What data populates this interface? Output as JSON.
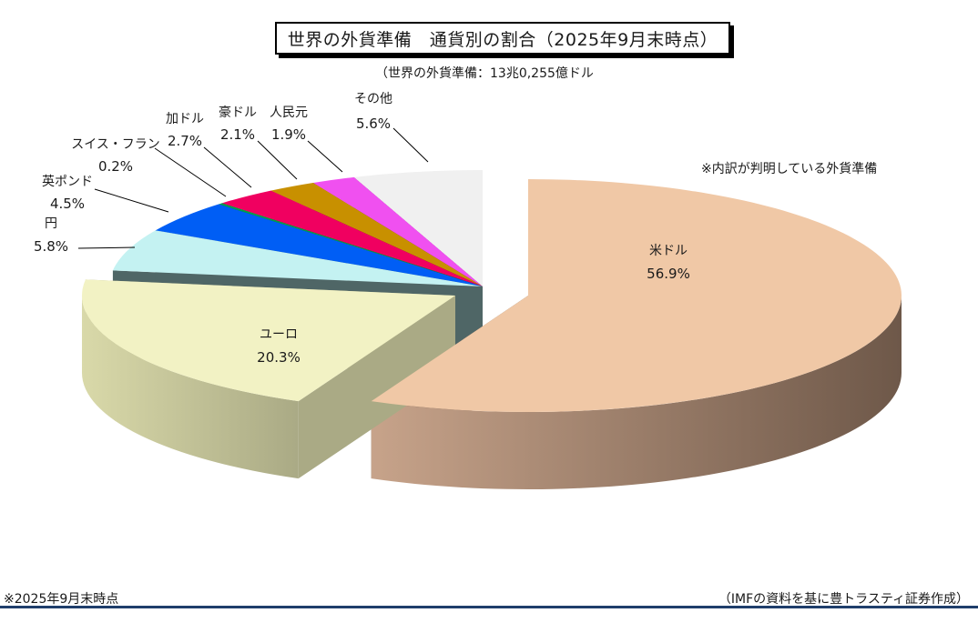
{
  "title": "世界の外貨準備　通貨別の割合（2025年9月末時点）",
  "subtitle": "（世界の外貨準備：13兆0,255億ドル",
  "note": "※内訳が判明している外貨準備",
  "footer_left": "※2025年9月末時点",
  "footer_right": "（IMFの資料を基に豊トラスティ証券作成）",
  "chart_data": {
    "type": "pie",
    "title": "世界の外貨準備　通貨別の割合（2025年9月末時点）",
    "unit": "%",
    "slices": [
      {
        "name": "米ドル",
        "value": 56.9,
        "label": "56.9%",
        "color": "#f0c8a6",
        "side_dark": "#6e5849",
        "side_light": "#c7a38a"
      },
      {
        "name": "ユーロ",
        "value": 20.3,
        "label": "20.3%",
        "color": "#f2f2c4",
        "side_dark": "#aaaa85",
        "side_light": "#d9d9a9"
      },
      {
        "name": "円",
        "value": 5.8,
        "label": "5.8%",
        "color": "#c4f2f2",
        "side_dark": "#4f6666",
        "side_light": "#5b7474"
      },
      {
        "name": "英ポンド",
        "value": 4.5,
        "label": "4.5%",
        "color": "#005ef5",
        "side_dark": "#00205a",
        "side_light": "#003080"
      },
      {
        "name": "スイス・フラン",
        "value": 0.2,
        "label": "0.2%",
        "color": "#00a04a",
        "side_dark": "#004a22",
        "side_light": "#006030"
      },
      {
        "name": "加ドル",
        "value": 2.7,
        "label": "2.7%",
        "color": "#f00060",
        "side_dark": "#5a0024",
        "side_light": "#780030"
      },
      {
        "name": "豪ドル",
        "value": 2.1,
        "label": "2.1%",
        "color": "#c89000",
        "side_dark": "#4a3500",
        "side_light": "#6a4c00"
      },
      {
        "name": "人民元",
        "value": 1.9,
        "label": "1.9%",
        "color": "#f050f0",
        "side_dark": "#5a1e5a",
        "side_light": "#782878"
      },
      {
        "name": "その他",
        "value": 5.6,
        "label": "5.6%",
        "color": "#f0f0f0",
        "side_dark": "#6a6a6a",
        "side_light": "#8a8a8a"
      }
    ],
    "legend": "none",
    "style": "3d-exploded"
  }
}
